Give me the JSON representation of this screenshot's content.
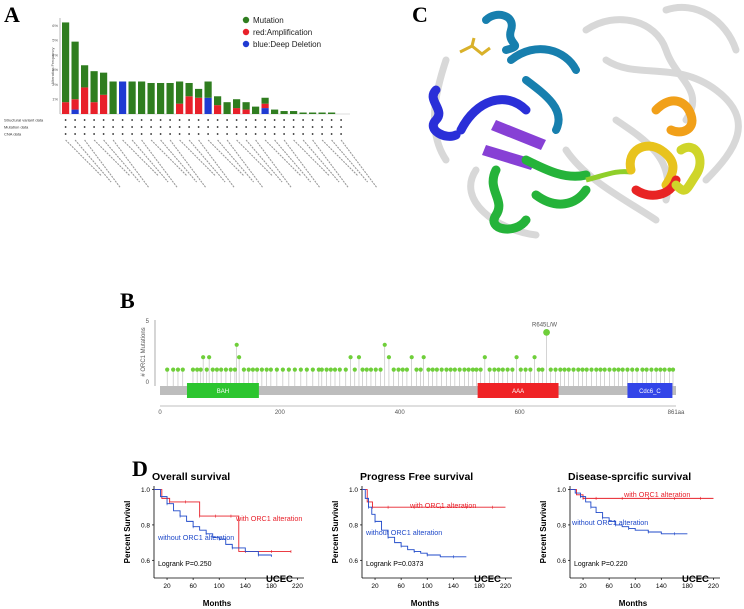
{
  "panels": {
    "A": "A",
    "B": "B",
    "C": "C",
    "D": "D"
  },
  "colors": {
    "mutation": "#2f7d1f",
    "amplification": "#e8202a",
    "deletion": "#1f3ad2",
    "lollipop": "#6fcf3a",
    "bah": "#2cc52f",
    "aaa": "#ef2326",
    "cdc6": "#3345e8",
    "surv_with": "#e8202a",
    "surv_without": "#1f49c9"
  },
  "chart_data": [
    {
      "type": "bar",
      "ylabel": "Alteration Frequency",
      "ylim": [
        0,
        6.5
      ],
      "yticks": [
        "1%",
        "2%",
        "3%",
        "4%",
        "5%",
        "6%"
      ],
      "legend": [
        "Mutation",
        "red:Amplification",
        "blue:Deep Deletion"
      ],
      "legend_position": "top-right",
      "series": [
        {
          "name": "Mutation",
          "values": [
            5.4,
            3.9,
            1.5,
            2.1,
            1.5,
            2.2,
            0,
            2.2,
            2.2,
            2.1,
            2.1,
            2.1,
            1.5,
            0.9,
            0.6,
            1.1,
            0.6,
            0.8,
            0.6,
            0.5,
            0.5,
            0.4,
            0.3,
            0.2,
            0.2,
            0.1,
            0.1,
            0.1,
            0.1,
            0
          ]
        },
        {
          "name": "Amplification",
          "values": [
            0.8,
            0.7,
            1.8,
            0.8,
            1.3,
            0,
            0,
            0,
            0,
            0,
            0,
            0,
            0.7,
            1.2,
            1.1,
            0,
            0.6,
            0,
            0.4,
            0.3,
            0,
            0.3,
            0,
            0,
            0,
            0,
            0,
            0,
            0,
            0
          ]
        },
        {
          "name": "Deep Deletion",
          "values": [
            0,
            0.3,
            0,
            0,
            0,
            0,
            2.2,
            0,
            0,
            0,
            0,
            0,
            0,
            0,
            0,
            1.1,
            0,
            0,
            0,
            0,
            0,
            0.4,
            0,
            0,
            0,
            0,
            0,
            0,
            0,
            0
          ]
        }
      ],
      "row_labels": [
        "Structural variant data",
        "Mutation data",
        "CNA data"
      ],
      "category_count": 30
    },
    {
      "type": "scatter",
      "ylabel": "# ORC1 Mutations",
      "xlim": [
        0,
        861
      ],
      "xticks": [
        "0",
        "200",
        "400",
        "600",
        "861aa"
      ],
      "ylim": [
        0,
        5
      ],
      "annotation": "R645L/W",
      "domains": [
        {
          "name": "BAH",
          "start": 45,
          "end": 165
        },
        {
          "name": "AAA",
          "start": 530,
          "end": 665
        },
        {
          "name": "Cdc6_C",
          "start": 780,
          "end": 855
        }
      ],
      "points": [
        [
          12,
          1
        ],
        [
          22,
          1
        ],
        [
          30,
          1
        ],
        [
          38,
          1
        ],
        [
          55,
          1
        ],
        [
          62,
          1
        ],
        [
          68,
          1
        ],
        [
          72,
          2
        ],
        [
          78,
          1
        ],
        [
          82,
          2
        ],
        [
          88,
          1
        ],
        [
          95,
          1
        ],
        [
          102,
          1
        ],
        [
          110,
          1
        ],
        [
          118,
          1
        ],
        [
          125,
          1
        ],
        [
          132,
          2
        ],
        [
          140,
          1
        ],
        [
          148,
          1
        ],
        [
          155,
          1
        ],
        [
          162,
          1
        ],
        [
          170,
          1
        ],
        [
          178,
          1
        ],
        [
          185,
          1
        ],
        [
          195,
          1
        ],
        [
          205,
          1
        ],
        [
          215,
          1
        ],
        [
          225,
          1
        ],
        [
          235,
          1
        ],
        [
          245,
          1
        ],
        [
          255,
          1
        ],
        [
          265,
          1
        ],
        [
          270,
          1
        ],
        [
          278,
          1
        ],
        [
          285,
          1
        ],
        [
          292,
          1
        ],
        [
          300,
          1
        ],
        [
          310,
          1
        ],
        [
          318,
          2
        ],
        [
          325,
          1
        ],
        [
          332,
          2
        ],
        [
          338,
          1
        ],
        [
          345,
          1
        ],
        [
          352,
          1
        ],
        [
          360,
          1
        ],
        [
          368,
          1
        ],
        [
          375,
          3
        ],
        [
          382,
          2
        ],
        [
          390,
          1
        ],
        [
          398,
          1
        ],
        [
          405,
          1
        ],
        [
          412,
          1
        ],
        [
          420,
          2
        ],
        [
          428,
          1
        ],
        [
          435,
          1
        ],
        [
          440,
          2
        ],
        [
          448,
          1
        ],
        [
          455,
          1
        ],
        [
          462,
          1
        ],
        [
          470,
          1
        ],
        [
          478,
          1
        ],
        [
          485,
          1
        ],
        [
          492,
          1
        ],
        [
          500,
          1
        ],
        [
          508,
          1
        ],
        [
          515,
          1
        ],
        [
          522,
          1
        ],
        [
          528,
          1
        ],
        [
          535,
          1
        ],
        [
          542,
          2
        ],
        [
          550,
          1
        ],
        [
          558,
          1
        ],
        [
          565,
          1
        ],
        [
          572,
          1
        ],
        [
          580,
          1
        ],
        [
          588,
          1
        ],
        [
          595,
          2
        ],
        [
          602,
          1
        ],
        [
          610,
          1
        ],
        [
          618,
          1
        ],
        [
          625,
          2
        ],
        [
          632,
          1
        ],
        [
          638,
          1
        ],
        [
          645,
          4
        ],
        [
          652,
          1
        ],
        [
          660,
          1
        ],
        [
          668,
          1
        ],
        [
          675,
          1
        ],
        [
          682,
          1
        ],
        [
          690,
          1
        ],
        [
          698,
          1
        ],
        [
          705,
          1
        ],
        [
          712,
          1
        ],
        [
          720,
          1
        ],
        [
          728,
          1
        ],
        [
          735,
          1
        ],
        [
          742,
          1
        ],
        [
          750,
          1
        ],
        [
          758,
          1
        ],
        [
          765,
          1
        ],
        [
          772,
          1
        ],
        [
          780,
          1
        ],
        [
          788,
          1
        ],
        [
          796,
          1
        ],
        [
          805,
          1
        ],
        [
          812,
          1
        ],
        [
          820,
          1
        ],
        [
          828,
          1
        ],
        [
          835,
          1
        ],
        [
          842,
          1
        ],
        [
          850,
          1
        ],
        [
          856,
          1
        ]
      ],
      "single_point": {
        "position": 128,
        "value": 3
      }
    },
    {
      "type": "line",
      "title": "Overall survival",
      "xlabel": "Months",
      "ylabel": "Percent Survival",
      "xticks": [
        20,
        60,
        100,
        140,
        180,
        220
      ],
      "yticks": [
        "0.6",
        "0.8",
        "1.0"
      ],
      "xlim": [
        0,
        230
      ],
      "ylim": [
        0.5,
        1.02
      ],
      "series": [
        {
          "name": "with ORC1 alteration",
          "x": [
            0,
            12,
            24,
            36,
            48,
            60,
            70,
            82,
            94,
            106,
            118,
            130,
            140,
            160,
            180,
            200,
            210
          ],
          "y": [
            1.0,
            0.95,
            0.93,
            0.93,
            0.93,
            0.93,
            0.85,
            0.85,
            0.85,
            0.85,
            0.85,
            0.65,
            0.65,
            0.65,
            0.65,
            0.65,
            0.65
          ]
        },
        {
          "name": "without ORC1 alteration",
          "x": [
            0,
            10,
            20,
            30,
            40,
            50,
            60,
            70,
            80,
            90,
            100,
            110,
            120,
            140,
            160,
            180
          ],
          "y": [
            1.0,
            0.96,
            0.92,
            0.88,
            0.85,
            0.82,
            0.79,
            0.77,
            0.75,
            0.73,
            0.72,
            0.69,
            0.67,
            0.65,
            0.63,
            0.62
          ]
        }
      ],
      "annotation": "Logrank  P=0.250",
      "tag": "UCEC"
    },
    {
      "type": "line",
      "title": "Progress Free survival",
      "xlabel": "Months",
      "ylabel": "Percent Survival",
      "xticks": [
        20,
        60,
        100,
        140,
        180,
        220
      ],
      "yticks": [
        "0.6",
        "0.8",
        "1.0"
      ],
      "xlim": [
        0,
        230
      ],
      "ylim": [
        0.5,
        1.02
      ],
      "series": [
        {
          "name": "with ORC1 alteration",
          "x": [
            0,
            8,
            16,
            24,
            40,
            60,
            80,
            100,
            120,
            140,
            160,
            180,
            200,
            220
          ],
          "y": [
            1.0,
            0.93,
            0.9,
            0.9,
            0.9,
            0.9,
            0.9,
            0.9,
            0.9,
            0.9,
            0.9,
            0.9,
            0.9,
            0.9
          ]
        },
        {
          "name": "without ORC1 alteration",
          "x": [
            0,
            5,
            10,
            15,
            20,
            30,
            40,
            50,
            60,
            70,
            80,
            90,
            100,
            120,
            140,
            160
          ],
          "y": [
            1.0,
            0.95,
            0.9,
            0.86,
            0.82,
            0.77,
            0.73,
            0.7,
            0.68,
            0.66,
            0.65,
            0.64,
            0.63,
            0.62,
            0.62,
            0.62
          ]
        }
      ],
      "annotation": "Logrank  P=0.0373",
      "tag": "UCEC"
    },
    {
      "type": "line",
      "title": "Disease-sprcific survival",
      "xlabel": "Months",
      "ylabel": "Percent Survival",
      "xticks": [
        20,
        60,
        100,
        140,
        180,
        220
      ],
      "yticks": [
        "0.6",
        "0.8",
        "1.0"
      ],
      "xlim": [
        0,
        230
      ],
      "ylim": [
        0.5,
        1.02
      ],
      "series": [
        {
          "name": "with ORC1 alteration",
          "x": [
            0,
            10,
            20,
            30,
            40,
            60,
            80,
            100,
            120,
            140,
            160,
            180,
            200,
            220
          ],
          "y": [
            1.0,
            0.97,
            0.95,
            0.95,
            0.95,
            0.95,
            0.95,
            0.95,
            0.95,
            0.95,
            0.95,
            0.95,
            0.95,
            0.95
          ]
        },
        {
          "name": "without ORC1 alteration",
          "x": [
            0,
            8,
            16,
            24,
            32,
            40,
            50,
            60,
            70,
            80,
            90,
            100,
            120,
            140,
            160,
            180
          ],
          "y": [
            1.0,
            0.98,
            0.96,
            0.93,
            0.9,
            0.87,
            0.84,
            0.82,
            0.8,
            0.79,
            0.78,
            0.77,
            0.76,
            0.75,
            0.75,
            0.75
          ]
        }
      ],
      "annotation": "Logrank  P=0.220",
      "tag": "UCEC"
    }
  ]
}
